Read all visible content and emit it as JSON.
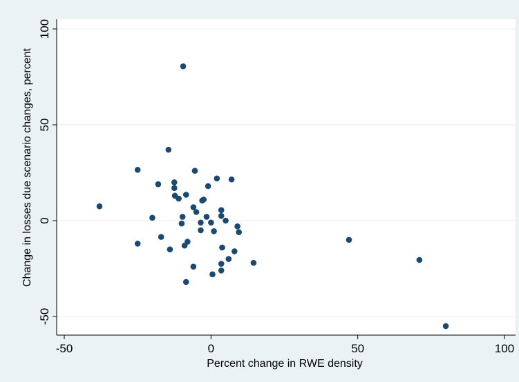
{
  "chart_data": {
    "type": "scatter",
    "title": "",
    "xlabel": "Percent change in RWE density",
    "ylabel": "Change in losses due scenario changes, percent",
    "xlim": [
      -50,
      100
    ],
    "ylim": [
      -50,
      100
    ],
    "xticks": [
      -50,
      0,
      50,
      100
    ],
    "yticks": [
      -50,
      0,
      50,
      100
    ],
    "xtick_labels": [
      "-50",
      "0",
      "50",
      "100"
    ],
    "ytick_labels": [
      "-50",
      "0",
      "50",
      "100"
    ],
    "grid": "horizontal",
    "legend": "none",
    "colors": {
      "background": "#eaf2f3",
      "plot_area": "#ffffff",
      "marker": "#1a4a72",
      "grid": "#e6ecec"
    },
    "series": [
      {
        "points": [
          [
            -38,
            7.5
          ],
          [
            -25,
            26.5
          ],
          [
            -25,
            -12
          ],
          [
            -20,
            1.5
          ],
          [
            -18,
            19
          ],
          [
            -17,
            -8.5
          ],
          [
            -14.5,
            37
          ],
          [
            -14,
            -15
          ],
          [
            -12.5,
            20
          ],
          [
            -12.5,
            17
          ],
          [
            -12.3,
            13
          ],
          [
            -11,
            11.5
          ],
          [
            -10,
            -1.5
          ],
          [
            -9.7,
            2
          ],
          [
            -9.5,
            80.5
          ],
          [
            -9,
            -13
          ],
          [
            -8.5,
            13.5
          ],
          [
            -8.5,
            -32
          ],
          [
            -8,
            -11
          ],
          [
            -6,
            7
          ],
          [
            -6,
            -24
          ],
          [
            -5.5,
            26
          ],
          [
            -5,
            4.5
          ],
          [
            -3.5,
            -5
          ],
          [
            -3.5,
            -1
          ],
          [
            -3,
            10.5
          ],
          [
            -2.5,
            11
          ],
          [
            -1.5,
            2
          ],
          [
            -1,
            18
          ],
          [
            0,
            -1
          ],
          [
            0.5,
            -28
          ],
          [
            1,
            -5.5
          ],
          [
            2,
            22
          ],
          [
            3.5,
            5.5
          ],
          [
            3.5,
            2.5
          ],
          [
            3.5,
            -22.5
          ],
          [
            3.5,
            -26
          ],
          [
            3.8,
            -14
          ],
          [
            5,
            0
          ],
          [
            6,
            -20
          ],
          [
            7,
            21.5
          ],
          [
            8,
            -16
          ],
          [
            9,
            -3
          ],
          [
            9.5,
            -6
          ],
          [
            14.5,
            -22
          ],
          [
            47,
            -10
          ],
          [
            71,
            -20.5
          ],
          [
            80,
            -55
          ]
        ]
      }
    ]
  }
}
